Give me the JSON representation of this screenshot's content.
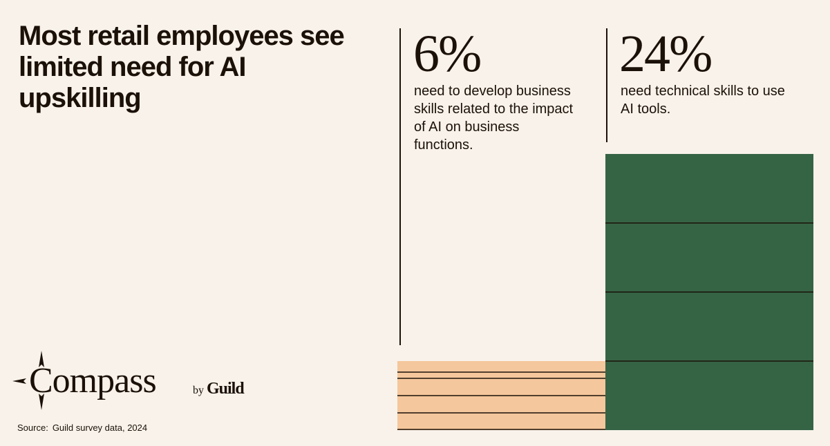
{
  "title": "Most retail employees see limited need for AI upskilling",
  "stats": [
    {
      "value": "6%",
      "description": "need to develop business skills related to the impact of AI on business functions."
    },
    {
      "value": "24%",
      "description": "need technical skills to use AI tools."
    }
  ],
  "chart_data": {
    "type": "bar",
    "categories": [
      "need to develop business skills related to the impact of AI on business functions.",
      "need technical skills to use AI tools."
    ],
    "values": [
      6,
      24
    ],
    "data_labels": [
      "6%",
      "24%"
    ],
    "ylim": [
      0,
      24
    ],
    "grid": false,
    "colors": [
      "#f5c79c",
      "#356445"
    ]
  },
  "brand": {
    "name": "Compass",
    "by": "by",
    "company": "Guild"
  },
  "source": {
    "label": "Source:",
    "text": "Guild survey data, 2024"
  },
  "colors": {
    "background": "#f8f2ea",
    "text": "#1b1108",
    "accent_light": "#f5c79c",
    "accent_dark": "#356445"
  }
}
